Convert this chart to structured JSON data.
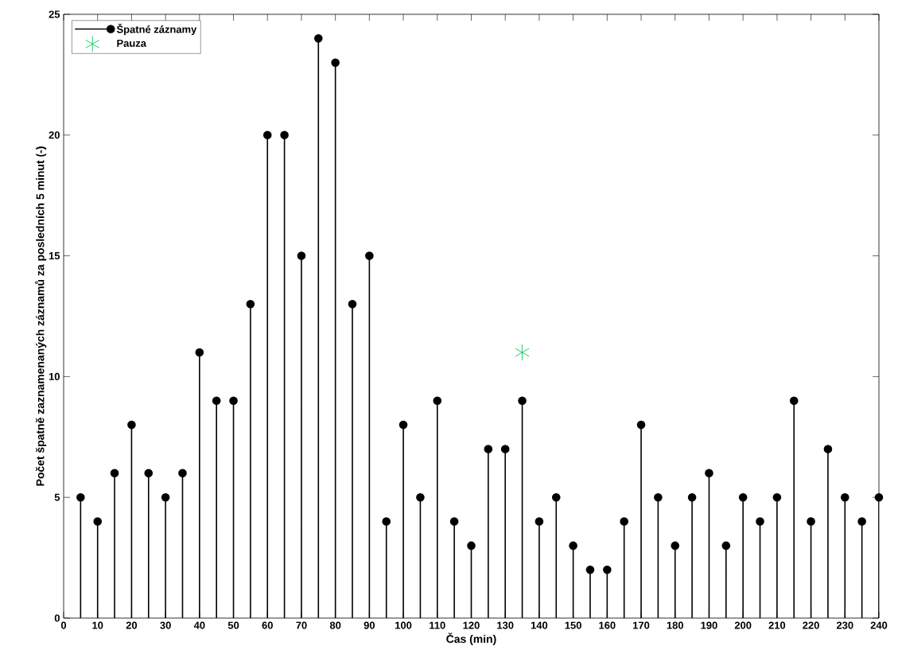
{
  "chart_data": {
    "type": "lollipop",
    "xlabel": "Čas (min)",
    "ylabel": "Počet špatně zaznamenaných záznamů za posledních 5 minut (-)",
    "xlim": [
      0,
      240
    ],
    "ylim": [
      0,
      25
    ],
    "xticks": [
      0,
      10,
      20,
      30,
      40,
      50,
      60,
      70,
      80,
      90,
      100,
      110,
      120,
      130,
      140,
      150,
      160,
      170,
      180,
      190,
      200,
      210,
      220,
      230,
      240
    ],
    "yticks": [
      0,
      5,
      10,
      15,
      20,
      25
    ],
    "legend": "top left",
    "series": [
      {
        "name": "Špatné záznamy",
        "color": "#000000",
        "marker": "circle",
        "x": [
          5,
          10,
          15,
          20,
          25,
          30,
          35,
          40,
          45,
          50,
          55,
          60,
          65,
          70,
          75,
          80,
          85,
          90,
          95,
          100,
          105,
          110,
          115,
          120,
          125,
          130,
          135,
          140,
          145,
          150,
          155,
          160,
          165,
          170,
          175,
          180,
          185,
          190,
          195,
          200,
          205,
          210,
          215,
          220,
          225,
          230,
          235,
          240
        ],
        "values": [
          5,
          4,
          6,
          8,
          6,
          5,
          6,
          11,
          9,
          9,
          13,
          20,
          20,
          15,
          24,
          23,
          13,
          15,
          4,
          8,
          5,
          9,
          4,
          3,
          7,
          7,
          9,
          4,
          5,
          3,
          2,
          2,
          4,
          8,
          5,
          3,
          5,
          6,
          3,
          5,
          4,
          5,
          9,
          4,
          7,
          5,
          4,
          5
        ]
      },
      {
        "name": "Pauza",
        "type": "scatter",
        "color": "#22cc66",
        "marker": "cross",
        "x": [
          135
        ],
        "values": [
          11
        ]
      }
    ]
  }
}
